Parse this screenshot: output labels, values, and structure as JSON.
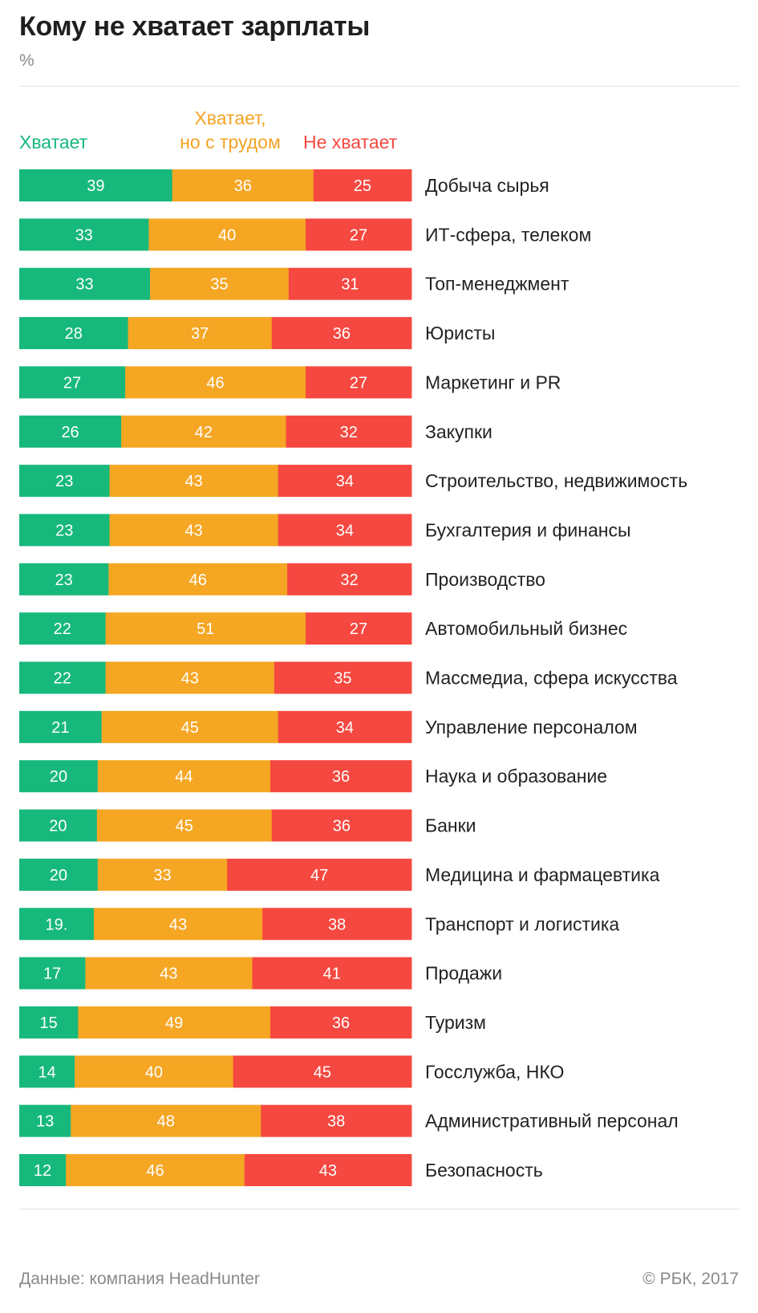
{
  "title": "Кому не хватает зарплаты",
  "unit": "%",
  "legend": {
    "enough": "Хватает",
    "barely": "Хватает, но с трудом",
    "barely_line1": "Хватает,",
    "barely_line2": "но с трудом",
    "not_enough": "Не хватает"
  },
  "colors": {
    "enough": "#17b87c",
    "barely": "#f5a623",
    "not_enough": "#f54840"
  },
  "chart_data": {
    "type": "bar",
    "stacked": true,
    "orientation": "horizontal",
    "title": "Кому не хватает зарплаты",
    "xlabel": "",
    "ylabel": "%",
    "categories": [
      "Добыча сырья",
      "ИТ-сфера, телеком",
      "Топ-менеджмент",
      "Юристы",
      "Маркетинг и PR",
      "Закупки",
      "Строительство, недвижимость",
      "Бухгалтерия и финансы",
      "Производство",
      "Автомобильный бизнес",
      "Массмедиа, сфера искусства",
      "Управление персоналом",
      "Наука и образование",
      "Банки",
      "Медицина и фармацевтика",
      "Транспорт и логистика",
      "Продажи",
      "Туризм",
      "Госслужба, НКО",
      "Административный персонал",
      "Безопасность"
    ],
    "series": [
      {
        "name": "Хватает",
        "values": [
          39,
          33,
          33,
          28,
          27,
          26,
          23,
          23,
          23,
          22,
          22,
          21,
          20,
          20,
          20,
          19,
          17,
          15,
          14,
          13,
          12
        ]
      },
      {
        "name": "Хватает, но с трудом",
        "values": [
          36,
          40,
          35,
          37,
          46,
          42,
          43,
          43,
          46,
          51,
          43,
          45,
          44,
          45,
          33,
          43,
          43,
          49,
          40,
          48,
          46
        ]
      },
      {
        "name": "Не хватает",
        "values": [
          25,
          27,
          31,
          36,
          27,
          32,
          34,
          34,
          32,
          27,
          35,
          34,
          36,
          36,
          47,
          38,
          41,
          36,
          45,
          38,
          43
        ]
      }
    ],
    "value_labels": [
      [
        "39",
        "36",
        "25"
      ],
      [
        "33",
        "40",
        "27"
      ],
      [
        "33",
        "35",
        "31"
      ],
      [
        "28",
        "37",
        "36"
      ],
      [
        "27",
        "46",
        "27"
      ],
      [
        "26",
        "42",
        "32"
      ],
      [
        "23",
        "43",
        "34"
      ],
      [
        "23",
        "43",
        "34"
      ],
      [
        "23",
        "46",
        "32"
      ],
      [
        "22",
        "51",
        "27"
      ],
      [
        "22",
        "43",
        "35"
      ],
      [
        "21",
        "45",
        "34"
      ],
      [
        "20",
        "44",
        "36"
      ],
      [
        "20",
        "45",
        "36"
      ],
      [
        "20",
        "33",
        "47"
      ],
      [
        "19.",
        "43",
        "38"
      ],
      [
        "17",
        "43",
        "41"
      ],
      [
        "15",
        "49",
        "36"
      ],
      [
        "14",
        "40",
        "45"
      ],
      [
        "13",
        "48",
        "38"
      ],
      [
        "12",
        "46",
        "43"
      ]
    ],
    "legend_position": "top-left",
    "grid": false
  },
  "footer": {
    "source": "Данные: компания HeadHunter",
    "copyright": "© РБК, 2017"
  }
}
